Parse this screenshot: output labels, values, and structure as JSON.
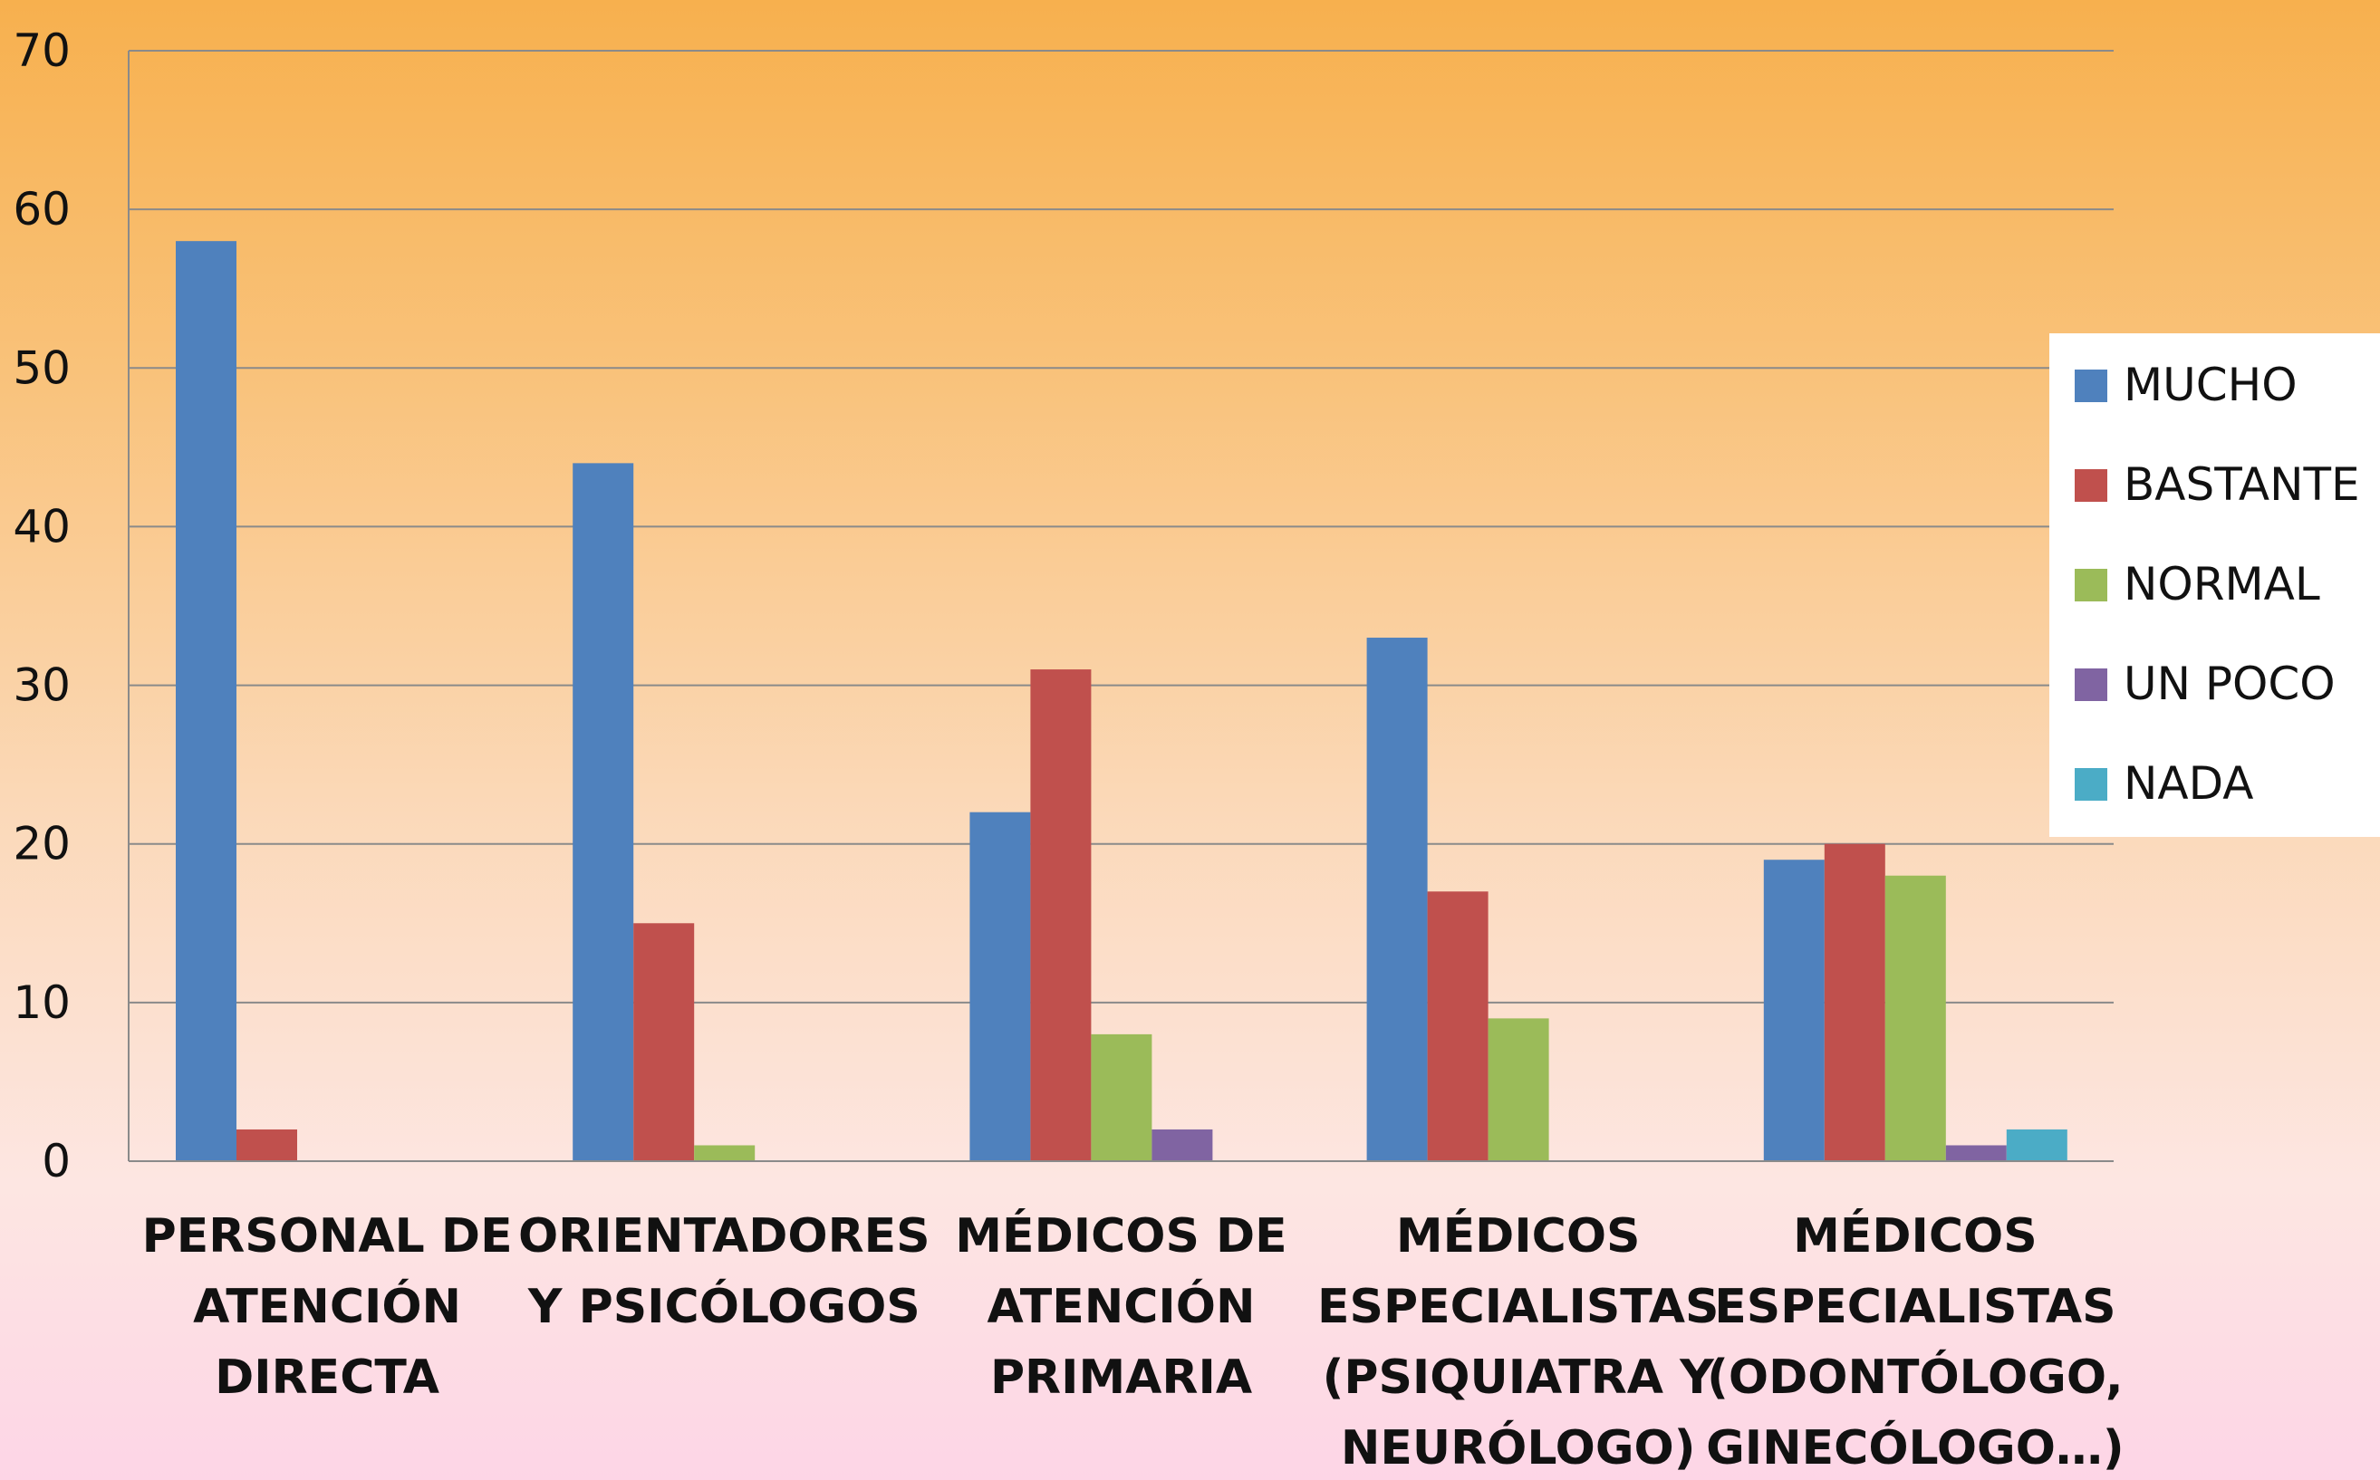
{
  "chart_data": {
    "type": "bar",
    "title": "",
    "xlabel": "",
    "ylabel": "",
    "ylim": [
      0,
      70
    ],
    "yticks": [
      0,
      10,
      20,
      30,
      40,
      50,
      60,
      70
    ],
    "grid": true,
    "legend_position": "right",
    "categories": [
      [
        "PERSONAL DE",
        "ATENCIÓN",
        "DIRECTA"
      ],
      [
        "ORIENTADORES",
        "Y PSICÓLOGOS"
      ],
      [
        "MÉDICOS DE",
        "ATENCIÓN",
        "PRIMARIA"
      ],
      [
        "MÉDICOS",
        "ESPECIALISTAS",
        "(PSIQUIATRA Y",
        "NEURÓLOGO)"
      ],
      [
        "MÉDICOS",
        "ESPECIALISTAS",
        "(ODONTÓLOGO,",
        "GINECÓLOGO…)"
      ]
    ],
    "series": [
      {
        "name": "MUCHO",
        "color": "#4f81bd",
        "values": [
          58,
          44,
          22,
          33,
          19
        ]
      },
      {
        "name": "BASTANTE",
        "color": "#c0504d",
        "values": [
          2,
          15,
          31,
          17,
          20
        ]
      },
      {
        "name": "NORMAL",
        "color": "#9bbb59",
        "values": [
          0,
          1,
          8,
          9,
          18
        ]
      },
      {
        "name": "UN POCO",
        "color": "#8064a2",
        "values": [
          0,
          0,
          2,
          0,
          1
        ]
      },
      {
        "name": "NADA",
        "color": "#4bacc6",
        "values": [
          0,
          0,
          0,
          0,
          2
        ]
      }
    ]
  }
}
